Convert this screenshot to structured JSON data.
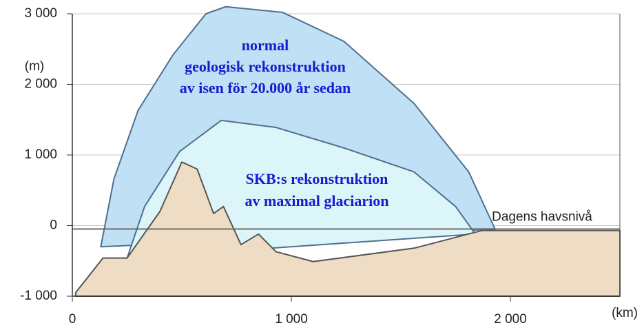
{
  "chart_data": {
    "type": "area",
    "y_label": "(m)",
    "x_label": "(km)",
    "annotation": "Dagens havsnivå",
    "xlim": [
      0,
      2500
    ],
    "ylim": [
      -1000,
      3000
    ],
    "xticks": [
      0,
      {
        "value": 1000,
        "label": "1 000"
      },
      {
        "value": 2000,
        "label": "2 000"
      }
    ],
    "yticks": [
      {
        "value": 3000,
        "label": "3 000"
      },
      {
        "value": 2000,
        "label": "2 000"
      },
      {
        "value": 1000,
        "label": "1 000"
      },
      0,
      {
        "value": -1000,
        "label": "-1 000"
      }
    ],
    "grid": true,
    "series": [
      {
        "label": [
          "normal",
          "geologisk rekonstruktion",
          "av isen för 20.000 år sedan"
        ],
        "color": "#bfe0f5",
        "edge_color": "#4f6f8f",
        "x": [
          130,
          190,
          300,
          460,
          610,
          700,
          960,
          1240,
          1560,
          1810,
          1930
        ],
        "values": [
          -300,
          660,
          1630,
          2420,
          3000,
          3100,
          3020,
          2610,
          1730,
          760,
          -50
        ]
      },
      {
        "label": [
          "SKB:s rekonstruktion",
          "av maximal glaciarion"
        ],
        "color": "#dcf5f8",
        "edge_color": "#4f6f8f",
        "x": [
          250,
          330,
          490,
          680,
          930,
          1240,
          1560,
          1750,
          1840
        ],
        "values": [
          -460,
          270,
          1050,
          1490,
          1390,
          1100,
          760,
          270,
          -120
        ]
      },
      {
        "color": "#efdcc5",
        "edge_color": "#555555",
        "x": [
          15,
          140,
          250,
          400,
          500,
          570,
          645,
          690,
          770,
          850,
          930,
          1100,
          1560,
          1870,
          2500
        ],
        "values": [
          -950,
          -460,
          -460,
          200,
          900,
          800,
          170,
          270,
          -270,
          -120,
          -370,
          -510,
          -320,
          -70,
          -70
        ]
      }
    ]
  }
}
